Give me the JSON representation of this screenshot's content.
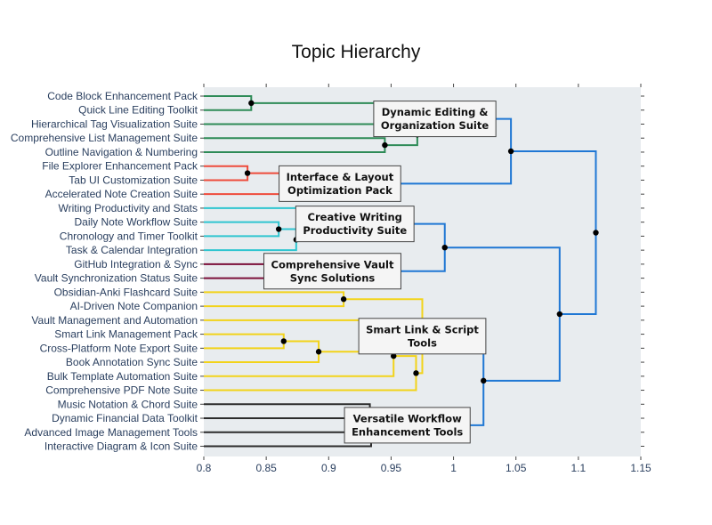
{
  "chart_data": {
    "type": "dendrogram",
    "title": "Topic Hierarchy",
    "xlim": [
      0.8,
      1.15
    ],
    "x_ticks": [
      0.8,
      0.85,
      0.9,
      0.95,
      1,
      1.05,
      1.1,
      1.15
    ],
    "x_tick_labels": [
      "0.8",
      "0.85",
      "0.9",
      "0.95",
      "1",
      "1.05",
      "1.1",
      "1.15"
    ],
    "leaves": [
      "Code Block Enhancement Pack",
      "Quick Line Editing Toolkit",
      "Hierarchical Tag Visualization Suite",
      "Comprehensive List Management Suite",
      "Outline Navigation & Numbering",
      "File Explorer Enhancement Pack",
      "Tab UI Customization Suite",
      "Accelerated Note Creation Suite",
      "Writing Productivity and Stats",
      "Daily Note Workflow Suite",
      "Chronology and Timer Toolkit",
      "Task & Calendar Integration",
      "GitHub Integration & Sync",
      "Vault Synchronization Status Suite",
      "Obsidian-Anki Flashcard Suite",
      "AI-Driven Note Companion",
      "Vault Management and Automation",
      "Smart Link Management Pack",
      "Cross-Platform Note Export Suite",
      "Book Annotation Sync Suite",
      "Bulk Template Automation Suite",
      "Comprehensive PDF Note Suite",
      "Music Notation & Chord Suite",
      "Dynamic Financial Data Toolkit",
      "Advanced Image Management Tools",
      "Interactive Diagram & Icon Suite"
    ],
    "merges": [
      {
        "id": "m1",
        "a": 0,
        "b": 1,
        "x": 0.838,
        "color": "#2e8b57"
      },
      {
        "id": "m2",
        "a": 3,
        "b": 4,
        "x": 0.945,
        "color": "#2e8b57"
      },
      {
        "id": "m3",
        "a": 2,
        "b": "m2",
        "x": 0.971,
        "color": "#2e8b57"
      },
      {
        "id": "m4",
        "a": "m1",
        "b": "m3",
        "x": 0.985,
        "color": "#2e8b57"
      },
      {
        "id": "m5",
        "a": 5,
        "b": 6,
        "x": 0.835,
        "color": "#ee4b3b"
      },
      {
        "id": "m6",
        "a": "m5",
        "b": 7,
        "x": 0.909,
        "color": "#ee4b3b"
      },
      {
        "id": "m7",
        "a": 9,
        "b": 10,
        "x": 0.86,
        "color": "#2ec5d0"
      },
      {
        "id": "m8",
        "a": "m7",
        "b": 11,
        "x": 0.874,
        "color": "#2ec5d0"
      },
      {
        "id": "m9",
        "a": 8,
        "b": "m8",
        "x": 0.921,
        "color": "#2ec5d0"
      },
      {
        "id": "m10",
        "a": 12,
        "b": 13,
        "x": 0.903,
        "color": "#7b0f3a"
      },
      {
        "id": "m11",
        "a": 14,
        "b": 15,
        "x": 0.912,
        "color": "#f2d31a"
      },
      {
        "id": "m12",
        "a": 17,
        "b": 18,
        "x": 0.864,
        "color": "#f2d31a"
      },
      {
        "id": "m13",
        "a": "m12",
        "b": 19,
        "x": 0.892,
        "color": "#f2d31a"
      },
      {
        "id": "m14",
        "a": 16,
        "b": "m13",
        "x": 0.944,
        "color": "#f2d31a"
      },
      {
        "id": "m15",
        "a": "m14",
        "b": 20,
        "x": 0.952,
        "color": "#f2d31a"
      },
      {
        "id": "m16",
        "a": "m15",
        "b": 21,
        "x": 0.97,
        "color": "#f2d31a"
      },
      {
        "id": "m17",
        "a": "m11",
        "b": "m16",
        "x": 0.975,
        "color": "#f2d31a"
      },
      {
        "id": "m18",
        "a": 22,
        "b": 23,
        "x": 0.933,
        "color": "#2b2b2b"
      },
      {
        "id": "m19",
        "a": 24,
        "b": 25,
        "x": 0.934,
        "color": "#2b2b2b"
      },
      {
        "id": "m20",
        "a": "m18",
        "b": "m19",
        "x": 0.963,
        "color": "#2b2b2b"
      },
      {
        "id": "m21",
        "a": "m4",
        "b": "m6",
        "x": 1.046,
        "color": "#1f77d4"
      },
      {
        "id": "m22",
        "a": "m9",
        "b": "m10",
        "x": 0.993,
        "color": "#1f77d4"
      },
      {
        "id": "m23",
        "a": "m17",
        "b": "m20",
        "x": 1.024,
        "color": "#1f77d4"
      },
      {
        "id": "m24",
        "a": "m22",
        "b": "m23",
        "x": 1.085,
        "color": "#1f77d4"
      },
      {
        "id": "m25",
        "a": "m21",
        "b": "m24",
        "x": 1.114,
        "color": "#1f77d4"
      }
    ],
    "cluster_labels": [
      {
        "node": "m4",
        "lines": [
          "Dynamic Editing &",
          "Organization Suite"
        ]
      },
      {
        "node": "m6",
        "lines": [
          "Interface & Layout",
          "Optimization Pack"
        ]
      },
      {
        "node": "m9",
        "lines": [
          "Creative Writing",
          "Productivity Suite"
        ]
      },
      {
        "node": "m10",
        "lines": [
          "Comprehensive Vault",
          "Sync Solutions"
        ]
      },
      {
        "node": "m17",
        "lines": [
          "Smart Link & Script",
          "Tools"
        ]
      },
      {
        "node": "m20",
        "lines": [
          "Versatile Workflow",
          "Enhancement Tools"
        ]
      }
    ],
    "plot_background": "#e8ecef",
    "node_marker_color": "#000000"
  }
}
